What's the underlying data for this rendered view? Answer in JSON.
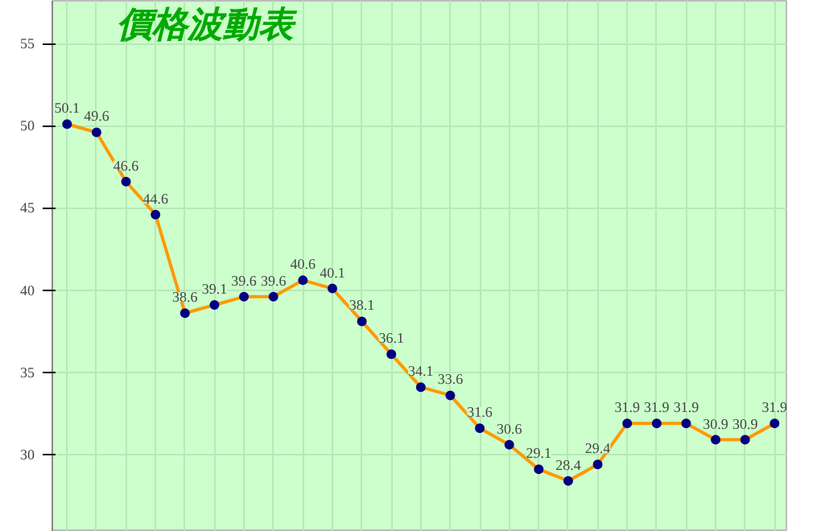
{
  "chart_data": {
    "type": "line",
    "title": "價格波動表",
    "categories": [
      null,
      null,
      null,
      null,
      null,
      null,
      null,
      null,
      null,
      null,
      null,
      null,
      null,
      null,
      null,
      null,
      null,
      null,
      null,
      null,
      null,
      null,
      null,
      null,
      null
    ],
    "series": [
      {
        "color": "#ff9900",
        "values": [
          50.1,
          49.6,
          46.6,
          44.6,
          38.6,
          39.1,
          39.6,
          39.6,
          40.6,
          40.1,
          38.1,
          36.1,
          34.1,
          33.6,
          31.6,
          30.6,
          29.1,
          28.4,
          29.4,
          31.9,
          31.9,
          31.9,
          30.9,
          30.9,
          31.9
        ]
      }
    ],
    "ylim": [
      25.3,
      57.6
    ],
    "yticks": [
      30,
      35,
      40,
      45,
      50,
      55
    ],
    "grid": true,
    "marker": "circle",
    "data_labels": true,
    "tick_labels": "y"
  }
}
